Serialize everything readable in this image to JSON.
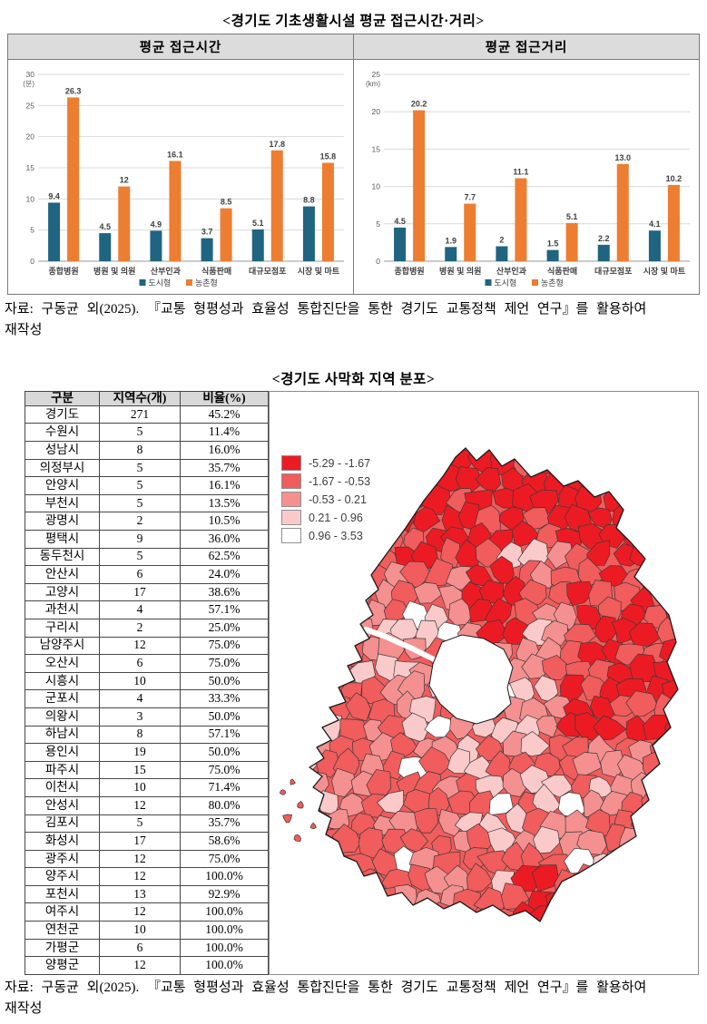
{
  "page": {
    "figure1_title": "<경기도 기초생활시설 평균 접근시간·거리>",
    "figure2_title": "<경기도 사막화 지역 분포>",
    "source_note": {
      "line1": "자료: 구동균 외(2025). 『교통 형평성과 효율성 통합진단을 통한 경기도 교통정책 제언 연구』를 활용하여",
      "line2": "재작성"
    }
  },
  "chart_data": [
    {
      "type": "bar",
      "panel_title": "평균 접근시간",
      "unit": "(분)",
      "categories": [
        "종합병원",
        "병원 및 의원",
        "산부인과",
        "식품판매",
        "대규모점포",
        "시장 및 마트"
      ],
      "series": [
        {
          "name": "도시형",
          "color": "#1F6480",
          "values": [
            9.4,
            4.5,
            4.9,
            3.7,
            5.1,
            8.8
          ],
          "labels": [
            "9.4",
            "4.5",
            "4.9",
            "3.7",
            "5.1",
            "8.8"
          ]
        },
        {
          "name": "농촌형",
          "color": "#ED7D31",
          "values": [
            26.3,
            12,
            16.1,
            8.5,
            17.8,
            15.8
          ],
          "labels": [
            "26.3",
            "12",
            "16.1",
            "8.5",
            "17.8",
            "15.8"
          ]
        }
      ],
      "ylim": [
        0,
        30
      ],
      "ytick_step": 5,
      "grid": true,
      "legend_position": "bottom"
    },
    {
      "type": "bar",
      "panel_title": "평균 접근거리",
      "unit": "(km)",
      "categories": [
        "종합병원",
        "병원 및 의원",
        "산부인과",
        "식품판매",
        "대규모점포",
        "시장 및 마트"
      ],
      "series": [
        {
          "name": "도시형",
          "color": "#1F6480",
          "values": [
            4.5,
            1.9,
            2,
            1.5,
            2.2,
            4.1
          ],
          "labels": [
            "4.5",
            "1.9",
            "2",
            "1.5",
            "2.2",
            "4.1"
          ]
        },
        {
          "name": "농촌형",
          "color": "#ED7D31",
          "values": [
            20.2,
            7.7,
            11.1,
            5.1,
            13.0,
            10.2
          ],
          "labels": [
            "20.2",
            "7.7",
            "11.1",
            "5.1",
            "13.0",
            "10.2"
          ]
        }
      ],
      "ylim": [
        0,
        25
      ],
      "ytick_step": 5,
      "grid": true,
      "legend_position": "bottom"
    }
  ],
  "table": {
    "headers": [
      "구분",
      "지역수(개)",
      "비율(%)"
    ],
    "rows": [
      [
        "경기도",
        "271",
        "45.2%"
      ],
      [
        "수원시",
        "5",
        "11.4%"
      ],
      [
        "성남시",
        "8",
        "16.0%"
      ],
      [
        "의정부시",
        "5",
        "35.7%"
      ],
      [
        "안양시",
        "5",
        "16.1%"
      ],
      [
        "부천시",
        "5",
        "13.5%"
      ],
      [
        "광명시",
        "2",
        "10.5%"
      ],
      [
        "평택시",
        "9",
        "36.0%"
      ],
      [
        "동두천시",
        "5",
        "62.5%"
      ],
      [
        "안산시",
        "6",
        "24.0%"
      ],
      [
        "고양시",
        "17",
        "38.6%"
      ],
      [
        "과천시",
        "4",
        "57.1%"
      ],
      [
        "구리시",
        "2",
        "25.0%"
      ],
      [
        "남양주시",
        "12",
        "75.0%"
      ],
      [
        "오산시",
        "6",
        "75.0%"
      ],
      [
        "시흥시",
        "10",
        "50.0%"
      ],
      [
        "군포시",
        "4",
        "33.3%"
      ],
      [
        "의왕시",
        "3",
        "50.0%"
      ],
      [
        "하남시",
        "8",
        "57.1%"
      ],
      [
        "용인시",
        "19",
        "50.0%"
      ],
      [
        "파주시",
        "15",
        "75.0%"
      ],
      [
        "이천시",
        "10",
        "71.4%"
      ],
      [
        "안성시",
        "12",
        "80.0%"
      ],
      [
        "김포시",
        "5",
        "35.7%"
      ],
      [
        "화성시",
        "17",
        "58.6%"
      ],
      [
        "광주시",
        "12",
        "75.0%"
      ],
      [
        "양주시",
        "12",
        "100.0%"
      ],
      [
        "포천시",
        "13",
        "92.9%"
      ],
      [
        "여주시",
        "12",
        "100.0%"
      ],
      [
        "연천군",
        "10",
        "100.0%"
      ],
      [
        "가평군",
        "6",
        "100.0%"
      ],
      [
        "양평군",
        "12",
        "100.0%"
      ]
    ]
  },
  "map": {
    "type": "choropleth",
    "legend": [
      {
        "label": "-5.29 - -1.67",
        "color": "#EC1B23"
      },
      {
        "label": "-1.67 - -0.53",
        "color": "#F15C5C"
      },
      {
        "label": "-0.53 - 0.21",
        "color": "#F59090"
      },
      {
        "label": "0.21 - 0.96",
        "color": "#FACACA"
      },
      {
        "label": "0.96 - 3.53",
        "color": "#FFFFFF"
      }
    ]
  }
}
